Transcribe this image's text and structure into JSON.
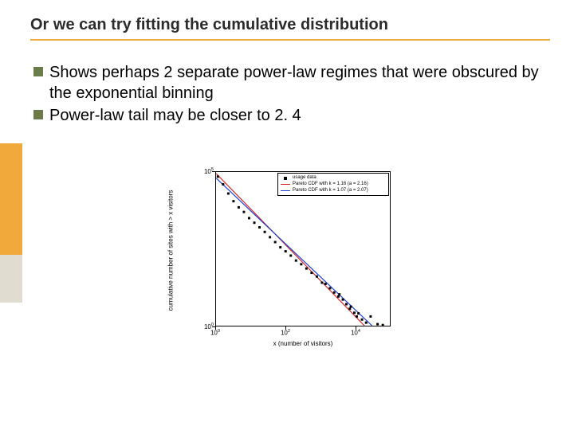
{
  "title": "Or we can try fitting the cumulative distribution",
  "bullets": [
    "Shows perhaps 2 separate power-law regimes that were obscured by the exponential binning",
    "Power-law tail may be closer to 2. 4"
  ],
  "chart": {
    "type": "scatter-loglog",
    "xlabel": "x (number of visitors)",
    "ylabel": "cumulative number of sites with > x visitors",
    "xlim_exp": [
      0,
      5
    ],
    "ylim_exp": [
      0,
      5
    ],
    "xticks_exp": [
      0,
      2,
      4
    ],
    "yticks_exp": [
      0,
      5
    ],
    "background_color": "#ffffff",
    "axis_color": "#000000",
    "legend": [
      {
        "type": "marker",
        "color": "#000000",
        "label": "usage data"
      },
      {
        "type": "line",
        "color": "#d62728",
        "label": "Pareto CDF with k = 1.16 (a = 2.16)"
      },
      {
        "type": "line",
        "color": "#1f3fd6",
        "label": "Pareto CDF with k = 1.07 (a = 2.07)"
      }
    ],
    "scatter": {
      "color": "#000000",
      "marker_size": 3,
      "points_logxy": [
        [
          0.05,
          4.85
        ],
        [
          0.2,
          4.6
        ],
        [
          0.35,
          4.3
        ],
        [
          0.5,
          4.05
        ],
        [
          0.65,
          3.85
        ],
        [
          0.8,
          3.7
        ],
        [
          0.95,
          3.5
        ],
        [
          1.1,
          3.35
        ],
        [
          1.25,
          3.2
        ],
        [
          1.4,
          3.05
        ],
        [
          1.55,
          2.88
        ],
        [
          1.7,
          2.72
        ],
        [
          1.85,
          2.55
        ],
        [
          2.0,
          2.42
        ],
        [
          2.15,
          2.28
        ],
        [
          2.3,
          2.12
        ],
        [
          2.45,
          2.0
        ],
        [
          2.6,
          1.86
        ],
        [
          2.75,
          1.72
        ],
        [
          2.9,
          1.6
        ],
        [
          3.05,
          1.4
        ],
        [
          3.15,
          1.36
        ],
        [
          3.28,
          1.22
        ],
        [
          3.4,
          1.08
        ],
        [
          3.52,
          0.95
        ],
        [
          3.55,
          1.02
        ],
        [
          3.65,
          0.85
        ],
        [
          3.75,
          0.7
        ],
        [
          3.85,
          0.55
        ],
        [
          3.88,
          0.62
        ],
        [
          3.98,
          0.42
        ],
        [
          4.05,
          0.3
        ],
        [
          4.1,
          0.4
        ],
        [
          4.2,
          0.2
        ],
        [
          4.32,
          0.1
        ],
        [
          4.45,
          0.3
        ],
        [
          4.65,
          0.05
        ],
        [
          4.8,
          0.02
        ]
      ]
    },
    "lines": [
      {
        "color": "#d62728",
        "width": 1.2,
        "p1_logxy": [
          0.0,
          4.95
        ],
        "p2_logxy": [
          4.27,
          0.0
        ]
      },
      {
        "color": "#1f3fd6",
        "width": 1.2,
        "p1_logxy": [
          0.0,
          4.8
        ],
        "p2_logxy": [
          4.49,
          0.0
        ]
      }
    ]
  },
  "colors": {
    "accent_orange": "#f2a93c",
    "accent_beige": "#e0dcd0",
    "bullet_olive": "#6b7a4a"
  }
}
